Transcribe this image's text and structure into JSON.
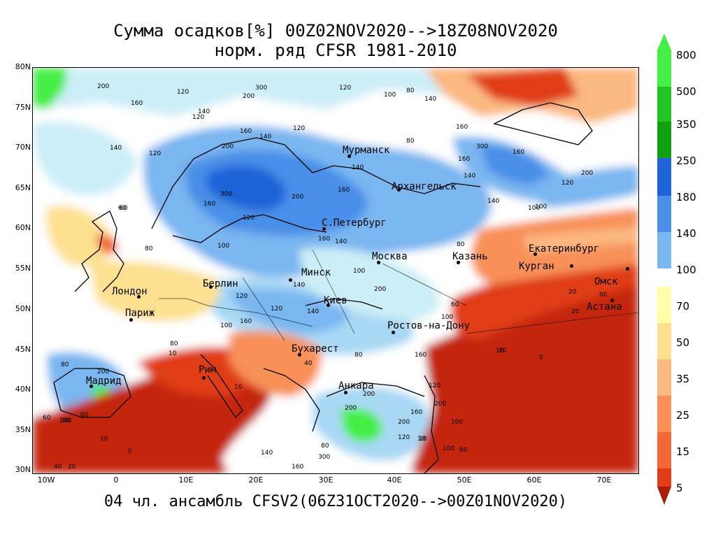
{
  "titles": {
    "line1": "Сумма осадков[%] 00Z02NOV2020-->18Z08NOV2020",
    "line2": "норм. ряд CFSR 1981-2010",
    "bottom": "04 чл. ансамбль CFSV2(06Z31OCT2020-->00Z01NOV2020)"
  },
  "axes": {
    "lat_labels": [
      "80N",
      "75N",
      "70N",
      "65N",
      "60N",
      "55N",
      "50N",
      "45N",
      "40N",
      "35N",
      "30N"
    ],
    "lon_labels": [
      "10W",
      "0",
      "10E",
      "20E",
      "30E",
      "40E",
      "50E",
      "60E",
      "70E"
    ]
  },
  "cities": [
    {
      "name": "Мурманск"
    },
    {
      "name": "Архангельск"
    },
    {
      "name": "С.Петербург"
    },
    {
      "name": "Москва"
    },
    {
      "name": "Казань"
    },
    {
      "name": "Екатеринбург"
    },
    {
      "name": "Курган"
    },
    {
      "name": "Омск"
    },
    {
      "name": "Астана"
    },
    {
      "name": "Минск"
    },
    {
      "name": "Берлин"
    },
    {
      "name": "Лондон"
    },
    {
      "name": "Париж"
    },
    {
      "name": "Киев"
    },
    {
      "name": "Ростов-на-Дону"
    },
    {
      "name": "Бухарест"
    },
    {
      "name": "Рим"
    },
    {
      "name": "Мадрид"
    },
    {
      "name": "Анкара"
    }
  ],
  "contour_labels": [
    "200",
    "120",
    "160",
    "140",
    "120",
    "100",
    "80",
    "120",
    "140",
    "160",
    "140",
    "120",
    "300",
    "200",
    "160",
    "140",
    "120",
    "200",
    "140",
    "160",
    "300",
    "160",
    "120",
    "200",
    "160",
    "140",
    "100",
    "60",
    "300",
    "160",
    "140",
    "120",
    "200",
    "160",
    "100",
    "80",
    "140",
    "60",
    "80",
    "100",
    "120",
    "140",
    "200",
    "120",
    "100",
    "140",
    "160",
    "100",
    "80",
    "60",
    "20",
    "10",
    "100",
    "60",
    "20",
    "10",
    "60",
    "80",
    "10",
    "0",
    "80",
    "200",
    "120",
    "80",
    "10",
    "0",
    "160",
    "140",
    "40",
    "20",
    "300",
    "200",
    "160",
    "120",
    "10",
    "40",
    "80",
    "200",
    "200",
    "160",
    "100",
    "120",
    "200",
    "80",
    "100",
    "60",
    "20",
    "10",
    "80"
  ],
  "legend": {
    "colors": [
      "#44ee44",
      "#22c422",
      "#11a011",
      "#1e64d8",
      "#4a8ee8",
      "#7ab6f0",
      "#a8d8f4",
      "#cceef8",
      "#ffffff",
      "#ffffaa",
      "#fde090",
      "#fbb880",
      "#f89058",
      "#f26838",
      "#e03c18",
      "#c42608",
      "#a81e04"
    ],
    "labels": [
      "800",
      "500",
      "350",
      "250",
      "180",
      "140",
      "100",
      "70",
      "50",
      "35",
      "25",
      "15",
      "5"
    ]
  }
}
